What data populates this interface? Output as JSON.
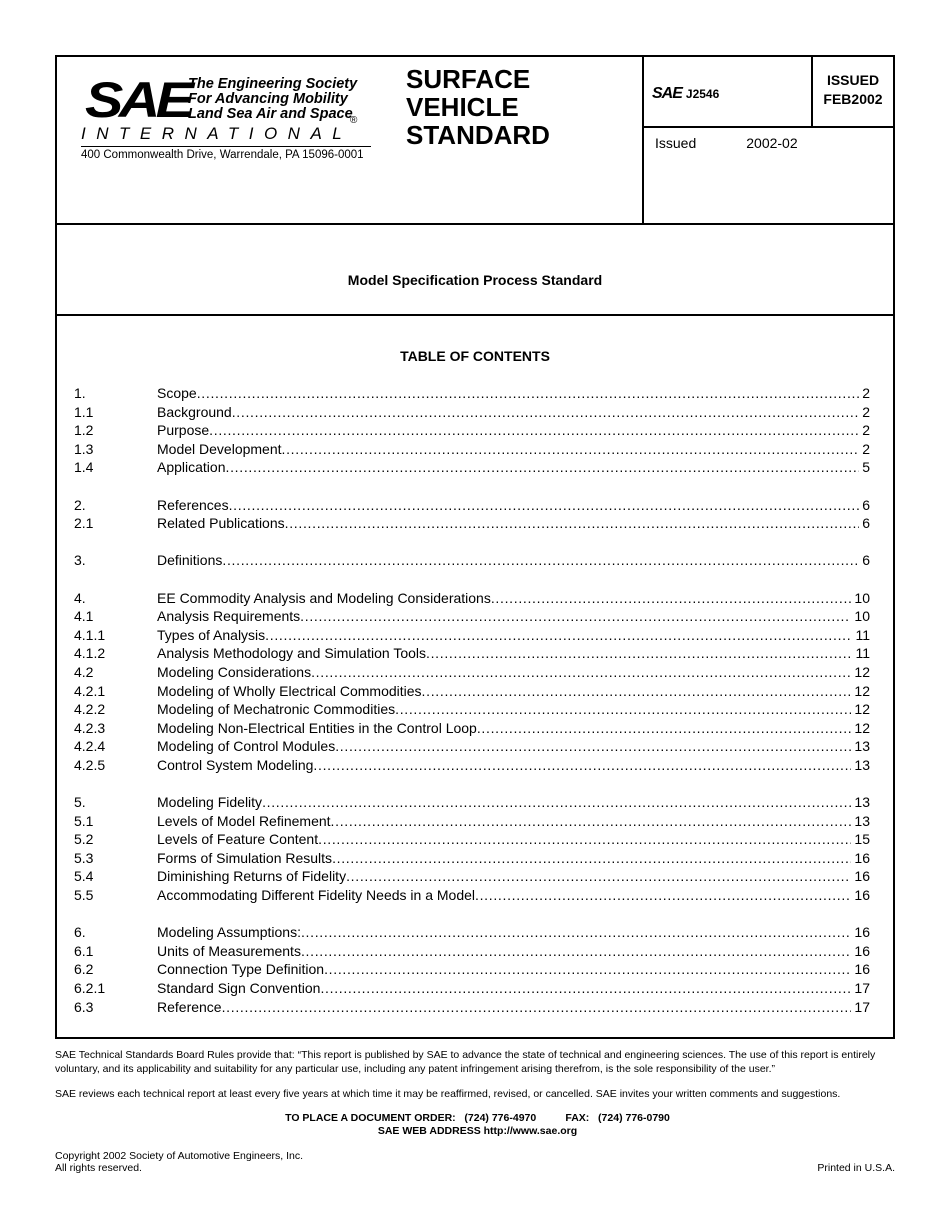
{
  "header": {
    "logo_text": "SAE",
    "tagline": [
      "The Engineering Society",
      "For Advancing Mobility",
      "Land Sea Air and Space"
    ],
    "registered": "®",
    "international": "INTERNATIONAL",
    "address": "400 Commonwealth Drive, Warrendale, PA 15096-0001",
    "doc_type": [
      "SURFACE",
      "VEHICLE",
      "STANDARD"
    ],
    "doc_logo": "SAE",
    "doc_number": "J2546",
    "status": [
      "ISSUED",
      "FEB2002"
    ],
    "issued_label": "Issued",
    "issued_date": "2002-02"
  },
  "title": "Model Specification Process Standard",
  "toc": {
    "heading": "TABLE OF CONTENTS",
    "groups": [
      [
        [
          "1.",
          "Scope",
          "2"
        ],
        [
          "1.1",
          "Background",
          "2"
        ],
        [
          "1.2",
          "Purpose",
          "2"
        ],
        [
          "1.3",
          "Model Development",
          "2"
        ],
        [
          "1.4",
          "Application",
          "5"
        ]
      ],
      [
        [
          "2.",
          "References",
          "6"
        ],
        [
          "2.1",
          "Related Publications",
          "6"
        ]
      ],
      [
        [
          "3.",
          "Definitions",
          "6"
        ]
      ],
      [
        [
          "4.",
          "EE Commodity Analysis and Modeling Considerations",
          "10"
        ],
        [
          "4.1",
          "Analysis Requirements",
          "10"
        ],
        [
          "4.1.1",
          "Types of  Analysis",
          "11"
        ],
        [
          "4.1.2",
          "Analysis Methodology and Simulation Tools",
          "11"
        ],
        [
          "4.2",
          "Modeling Considerations",
          "12"
        ],
        [
          "4.2.1",
          "Modeling of Wholly Electrical Commodities",
          "12"
        ],
        [
          "4.2.2",
          "Modeling of Mechatronic Commodities",
          "12"
        ],
        [
          "4.2.3",
          "Modeling Non-Electrical Entities in the Control Loop",
          "12"
        ],
        [
          "4.2.4",
          "Modeling of Control Modules",
          "13"
        ],
        [
          "4.2.5",
          "Control System Modeling",
          "13"
        ]
      ],
      [
        [
          "5.",
          "Modeling Fidelity",
          "13"
        ],
        [
          "5.1",
          "Levels of Model Refinement",
          "13"
        ],
        [
          "5.2",
          "Levels of Feature Content",
          "15"
        ],
        [
          "5.3",
          "Forms of Simulation Results",
          "16"
        ],
        [
          "5.4",
          "Diminishing Returns of Fidelity",
          "16"
        ],
        [
          "5.5",
          "Accommodating Different Fidelity Needs in a Model",
          "16"
        ]
      ],
      [
        [
          "6.",
          "Modeling Assumptions:",
          "16"
        ],
        [
          "6.1",
          "Units of Measurements",
          "16"
        ],
        [
          "6.2",
          "Connection Type Definition",
          "16"
        ],
        [
          "6.2.1",
          "Standard Sign Convention",
          "17"
        ],
        [
          "6.3",
          "Reference",
          "17"
        ]
      ]
    ]
  },
  "footer": {
    "rules": "SAE Technical Standards Board Rules provide that: “This report is published by SAE to advance the state of technical and engineering sciences. The use of this report is entirely voluntary, and its applicability and suitability for any particular use, including any patent infringement arising therefrom, is the sole responsibility of the user.”",
    "review": "SAE reviews each technical report at least every five years at which time it may be reaffirmed, revised, or cancelled. SAE invites your written comments and suggestions.",
    "order": "TO PLACE A DOCUMENT ORDER:   (724) 776-4970          FAX:   (724) 776-0790",
    "web": "SAE WEB ADDRESS  http://www.sae.org",
    "copyright": "Copyright 2002 Society of Automotive Engineers, Inc.",
    "rights": "All rights reserved.",
    "printed": "Printed in U.S.A."
  }
}
